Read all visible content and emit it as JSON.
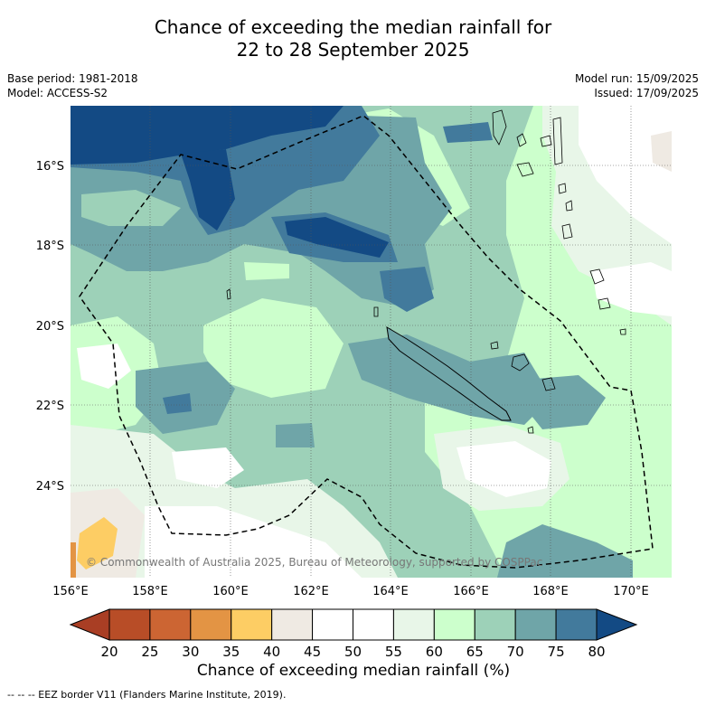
{
  "title": {
    "line1": "Chance of exceeding the median rainfall for",
    "line2": "22 to 28 September 2025"
  },
  "meta": {
    "base_period": "Base period: 1981-2018",
    "model": "Model: ACCESS-S2",
    "model_run": "Model run: 15/09/2025",
    "issued": "Issued: 17/09/2025"
  },
  "map": {
    "lat_labels": [
      "16°S",
      "18°S",
      "20°S",
      "22°S",
      "24°S"
    ],
    "lon_labels": [
      "156°E",
      "158°E",
      "160°E",
      "162°E",
      "164°E",
      "166°E",
      "168°E",
      "170°E"
    ],
    "copyright": "© Commonwealth of Australia 2025, Bureau of Meteorology, supported by COSPPac",
    "gridlines": true
  },
  "colorbar": {
    "ticks": [
      "20",
      "25",
      "30",
      "35",
      "40",
      "45",
      "50",
      "55",
      "60",
      "65",
      "70",
      "75",
      "80"
    ],
    "colors": [
      "#a93e24",
      "#b84d27",
      "#cc6533",
      "#e39444",
      "#fdcd64",
      "#efeae3",
      "#ffffff",
      "#ffffff",
      "#e8f6e8",
      "#ccffcc",
      "#9dd1b8",
      "#6fa5a8",
      "#427a9c",
      "#134a84"
    ],
    "label": "Chance of exceeding median rainfall (%)"
  },
  "legend_note": "--  --  -- EEZ border V11 (Flanders Marine Institute, 2019)."
}
